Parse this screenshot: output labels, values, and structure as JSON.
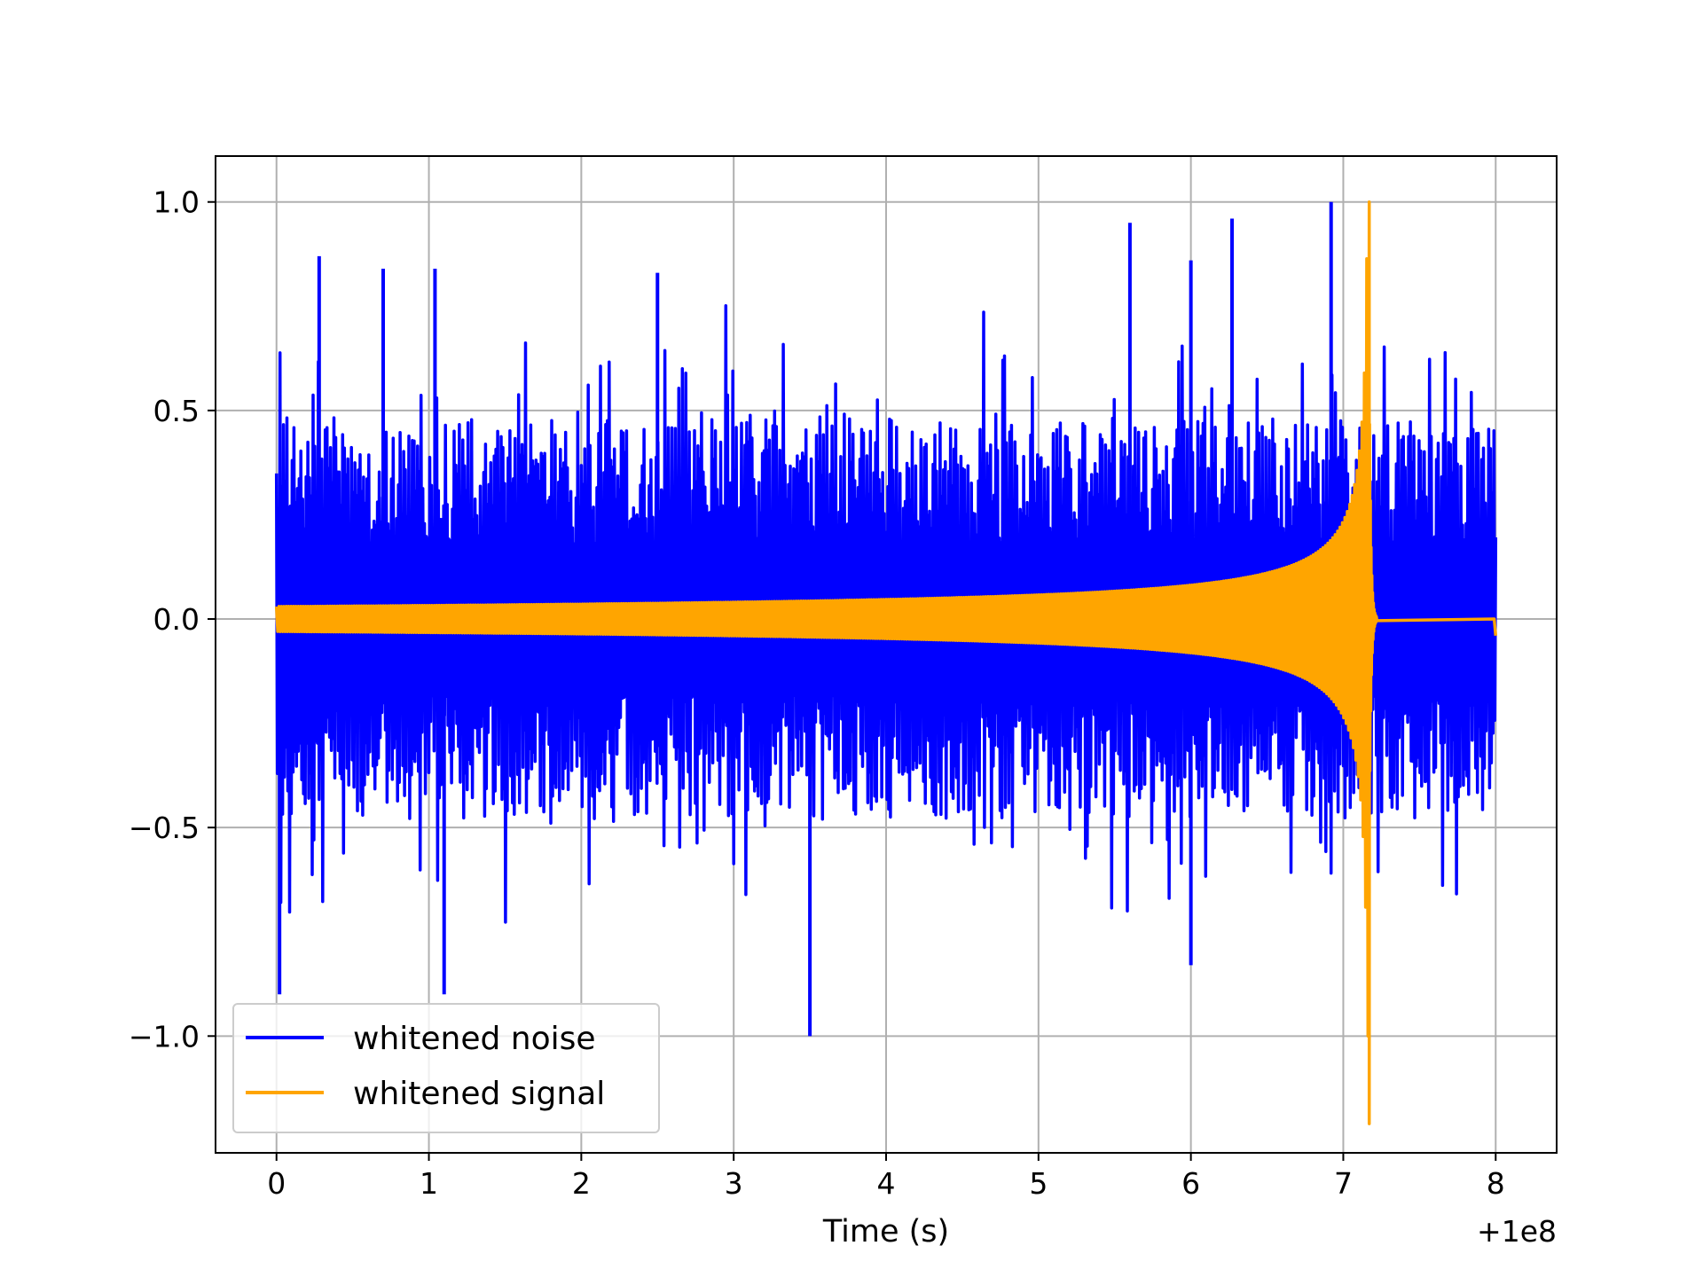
{
  "chart_data": {
    "type": "line",
    "title": "",
    "xlabel": "Time (s)",
    "ylabel": "",
    "x_offset_label": "+1e8",
    "xlim": [
      -0.4,
      8.4
    ],
    "ylim": [
      -1.28,
      1.11
    ],
    "x_ticks": [
      0,
      1,
      2,
      3,
      4,
      5,
      6,
      7,
      8
    ],
    "x_tick_labels": [
      "0",
      "1",
      "2",
      "3",
      "4",
      "5",
      "6",
      "7",
      "8"
    ],
    "y_ticks": [
      -1.0,
      -0.5,
      0.0,
      0.5,
      1.0
    ],
    "y_tick_labels": [
      "−1.0",
      "−0.5",
      "0.0",
      "0.5",
      "1.0"
    ],
    "grid": true,
    "legend_position": "lower-left",
    "series": [
      {
        "name": "whitened noise",
        "color": "#0000ff",
        "x_range": [
          0,
          8
        ],
        "typical_amplitude": [
          -0.4,
          0.45
        ],
        "peaks": [
          {
            "x": 0.02,
            "y": -0.9
          },
          {
            "x": 0.28,
            "y": 0.87
          },
          {
            "x": 0.7,
            "y": 0.84
          },
          {
            "x": 1.04,
            "y": 0.84
          },
          {
            "x": 1.1,
            "y": -0.9
          },
          {
            "x": 2.5,
            "y": 0.83
          },
          {
            "x": 3.5,
            "y": -1.0
          },
          {
            "x": 5.6,
            "y": 0.95
          },
          {
            "x": 6.0,
            "y": 0.86
          },
          {
            "x": 6.0,
            "y": -0.83
          },
          {
            "x": 6.27,
            "y": 0.96
          },
          {
            "x": 6.92,
            "y": 1.0
          }
        ]
      },
      {
        "name": "whitened signal",
        "color": "#ffa500",
        "x_range": [
          0,
          8
        ],
        "envelope_start": 0.03,
        "envelope_peak": 1.0,
        "min": -1.21,
        "merger_time": 7.17,
        "ringdown_end": 7.22,
        "flat_value": 0.0,
        "end_value": -0.04
      }
    ]
  }
}
